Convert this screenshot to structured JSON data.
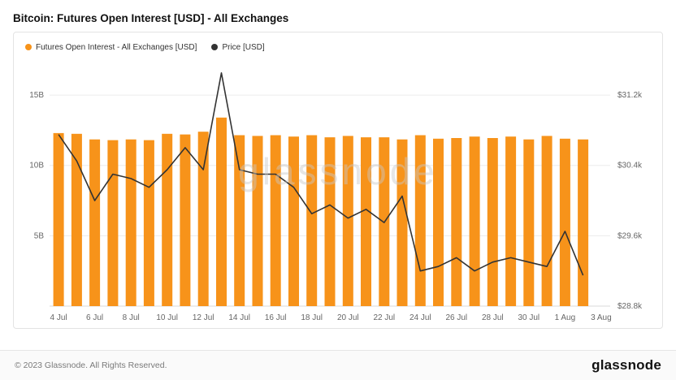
{
  "header": {
    "title": "Bitcoin: Futures Open Interest [USD] - All Exchanges"
  },
  "legend": {
    "items": [
      {
        "label": "Futures Open Interest - All Exchanges [USD]",
        "color": "#f7931a"
      },
      {
        "label": "Price [USD]",
        "color": "#333333"
      }
    ]
  },
  "watermark": "glassnode",
  "footer": {
    "copyright": "© 2023 Glassnode. All Rights Reserved.",
    "brand": "glassnode"
  },
  "chart_data": {
    "type": "bar",
    "title": "Bitcoin: Futures Open Interest [USD] - All Exchanges",
    "categories": [
      "4 Jul",
      "5 Jul",
      "6 Jul",
      "7 Jul",
      "8 Jul",
      "9 Jul",
      "10 Jul",
      "11 Jul",
      "12 Jul",
      "13 Jul",
      "14 Jul",
      "15 Jul",
      "16 Jul",
      "17 Jul",
      "18 Jul",
      "19 Jul",
      "20 Jul",
      "21 Jul",
      "22 Jul",
      "23 Jul",
      "24 Jul",
      "25 Jul",
      "26 Jul",
      "27 Jul",
      "28 Jul",
      "29 Jul",
      "30 Jul",
      "31 Jul",
      "1 Aug",
      "2 Aug"
    ],
    "bars": {
      "name": "Futures Open Interest - All Exchanges [USD]",
      "unit": "B USD",
      "color": "#f7931a",
      "values": [
        12.3,
        12.25,
        11.85,
        11.8,
        11.85,
        11.8,
        12.25,
        12.2,
        12.4,
        13.4,
        12.15,
        12.1,
        12.15,
        12.05,
        12.15,
        12.0,
        12.1,
        12.0,
        12.0,
        11.85,
        12.15,
        11.9,
        11.95,
        12.05,
        11.95,
        12.05,
        11.85,
        12.1,
        11.9,
        11.85
      ]
    },
    "line": {
      "name": "Price [USD]",
      "unit": "k USD",
      "color": "#333333",
      "values": [
        30.75,
        30.45,
        30.0,
        30.3,
        30.25,
        30.15,
        30.35,
        30.6,
        30.35,
        31.45,
        30.35,
        30.3,
        30.3,
        30.15,
        29.85,
        29.95,
        29.8,
        29.9,
        29.75,
        30.05,
        29.2,
        29.25,
        29.35,
        29.2,
        29.3,
        29.35,
        29.3,
        29.25,
        29.65,
        29.15
      ]
    },
    "left_axis": {
      "label": "Open Interest",
      "tick_labels": [
        "5B",
        "10B",
        "15B"
      ],
      "tick_values": [
        5,
        10,
        15
      ],
      "min": 0,
      "max": 17.2
    },
    "right_axis": {
      "label": "Price",
      "tick_labels": [
        "$28.8k",
        "$29.6k",
        "$30.4k",
        "$31.2k"
      ],
      "tick_values": [
        28.8,
        29.6,
        30.4,
        31.2
      ],
      "min": 28.8,
      "max": 31.55
    },
    "x_axis": {
      "tick_labels": [
        "4 Jul",
        "6 Jul",
        "8 Jul",
        "10 Jul",
        "12 Jul",
        "14 Jul",
        "16 Jul",
        "18 Jul",
        "20 Jul",
        "22 Jul",
        "24 Jul",
        "26 Jul",
        "28 Jul",
        "30 Jul",
        "1 Aug",
        "3 Aug"
      ],
      "tick_positions": [
        0,
        2,
        4,
        6,
        8,
        10,
        12,
        14,
        16,
        18,
        20,
        22,
        24,
        26,
        28,
        30
      ]
    },
    "grid": "horizontal-only",
    "legend_position": "top-left"
  }
}
